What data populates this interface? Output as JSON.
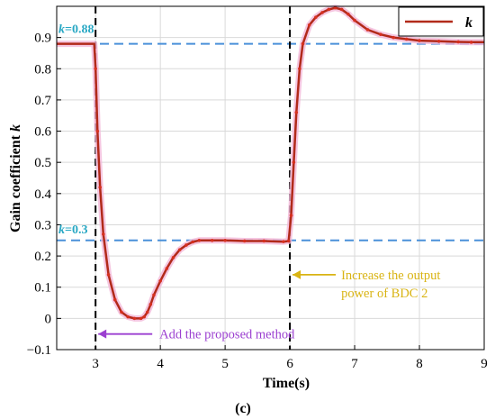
{
  "chart_data": {
    "type": "line",
    "xlabel": "Time(s)",
    "ylabel": "Gain coefficient k",
    "caption": "(c)",
    "xlim": [
      2.4,
      9
    ],
    "ylim": [
      -0.1,
      1.0
    ],
    "xticks": [
      "3",
      "4",
      "5",
      "6",
      "7",
      "8",
      "9"
    ],
    "yticks": [
      "−0.1",
      "0",
      "0.1",
      "0.2",
      "0.3",
      "0.4",
      "0.5",
      "0.6",
      "0.7",
      "0.8",
      "0.9"
    ],
    "grid": true,
    "legend": {
      "position": "top-right",
      "label": "k"
    },
    "series": [
      {
        "name": "k",
        "color": "#b22a1a",
        "x": [
          2.4,
          2.98,
          3.0,
          3.03,
          3.07,
          3.12,
          3.2,
          3.3,
          3.4,
          3.5,
          3.6,
          3.7,
          3.75,
          3.8,
          3.85,
          3.9,
          4.0,
          4.1,
          4.2,
          4.3,
          4.4,
          4.5,
          4.6,
          4.8,
          5.0,
          5.3,
          5.6,
          5.9,
          5.98,
          6.02,
          6.06,
          6.1,
          6.15,
          6.2,
          6.3,
          6.4,
          6.5,
          6.6,
          6.7,
          6.8,
          6.9,
          7.0,
          7.2,
          7.4,
          7.6,
          7.8,
          8.0,
          8.3,
          8.6,
          8.8,
          9.0
        ],
        "y": [
          0.88,
          0.88,
          0.8,
          0.6,
          0.42,
          0.27,
          0.14,
          0.06,
          0.02,
          0.005,
          0.0,
          0.0,
          0.005,
          0.02,
          0.045,
          0.075,
          0.12,
          0.16,
          0.195,
          0.22,
          0.235,
          0.245,
          0.25,
          0.25,
          0.25,
          0.248,
          0.248,
          0.246,
          0.248,
          0.33,
          0.5,
          0.66,
          0.8,
          0.88,
          0.94,
          0.965,
          0.98,
          0.99,
          0.995,
          0.99,
          0.975,
          0.955,
          0.925,
          0.91,
          0.9,
          0.895,
          0.89,
          0.888,
          0.886,
          0.885,
          0.885
        ]
      }
    ],
    "reference_lines": [
      {
        "type": "horizontal",
        "value": 0.88,
        "color": "#4a90d9",
        "dash": true
      },
      {
        "type": "horizontal",
        "value": 0.25,
        "color": "#4a90d9",
        "dash": true
      },
      {
        "type": "vertical",
        "value": 3,
        "color": "#000000",
        "dash": true
      },
      {
        "type": "vertical",
        "value": 6,
        "color": "#000000",
        "dash": true
      }
    ],
    "annotations": [
      {
        "text": "k=0.88",
        "color": "#29a8c4",
        "x": 2.4,
        "y": 0.88
      },
      {
        "text": "k=0.3",
        "color": "#29a8c4",
        "x": 2.4,
        "y": 0.25
      },
      {
        "text": "Add the proposed method",
        "color": "#9b3fd0",
        "arrow_to_x": 3.0,
        "y": -0.05
      },
      {
        "text_lines": [
          "Increase  the output",
          "power of BDC 2"
        ],
        "color": "#d9b414",
        "arrow_to_x": 6.0,
        "y": 0.14
      }
    ]
  }
}
